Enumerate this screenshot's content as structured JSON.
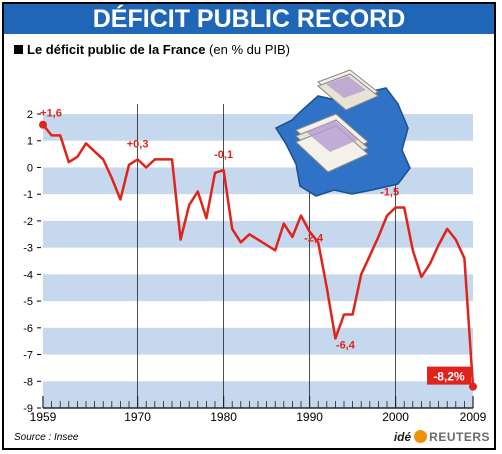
{
  "title": "DÉFICIT PUBLIC RECORD",
  "subtitle_bold": "Le déficit public de la France",
  "subtitle_rest": " (en % du PIB)",
  "source": "Source : Insee",
  "brand": {
    "ide": "idé",
    "reuters": "REUTERS"
  },
  "colors": {
    "title_bar": "#1f66b6",
    "line": "#e0231b",
    "stripe": "#c6d8ee",
    "map": "#2f72c6"
  },
  "icons": [
    "france-map-icon",
    "banknote-stack-icon"
  ],
  "chart_data": {
    "type": "line",
    "title": "",
    "xlabel": "",
    "ylabel": "",
    "xlim": [
      1959,
      2009
    ],
    "ylim": [
      -9,
      2
    ],
    "x_ticks": [
      1959,
      1970,
      1980,
      1990,
      2000,
      2009
    ],
    "y_ticks": [
      2,
      1,
      0,
      -1,
      -2,
      -3,
      -4,
      -5,
      -6,
      -7,
      -8,
      -9
    ],
    "grid": "alternating horizontal bands",
    "series": [
      {
        "x": [
          1959,
          1960,
          1961,
          1962,
          1963,
          1964,
          1965,
          1966,
          1967,
          1968,
          1969,
          1970,
          1971,
          1972,
          1973,
          1974,
          1975,
          1976,
          1977,
          1978,
          1979,
          1980,
          1981,
          1982,
          1983,
          1984,
          1985,
          1986,
          1987,
          1988,
          1989,
          1990,
          1991,
          1992,
          1993,
          1994,
          1995,
          1996,
          1997,
          1998,
          1999,
          2000,
          2001,
          2002,
          2003,
          2004,
          2005,
          2006,
          2007,
          2008,
          2009
        ],
        "y": [
          1.6,
          1.2,
          1.2,
          0.2,
          0.4,
          0.9,
          0.6,
          0.3,
          -0.4,
          -1.2,
          0.1,
          0.3,
          0.0,
          0.3,
          0.3,
          0.3,
          -2.7,
          -1.4,
          -0.9,
          -1.9,
          -0.2,
          -0.1,
          -2.3,
          -2.8,
          -2.5,
          -2.7,
          -2.9,
          -3.1,
          -2.1,
          -2.6,
          -1.8,
          -2.4,
          -2.8,
          -4.5,
          -6.4,
          -5.5,
          -5.5,
          -4.0,
          -3.3,
          -2.6,
          -1.8,
          -1.5,
          -1.5,
          -3.1,
          -4.1,
          -3.6,
          -2.9,
          -2.3,
          -2.7,
          -3.4,
          -8.2
        ]
      }
    ],
    "annotations": [
      {
        "x": 1959,
        "y": 1.6,
        "text": "+1,6"
      },
      {
        "x": 1970,
        "y": 0.3,
        "text": "+0,3"
      },
      {
        "x": 1980,
        "y": -0.1,
        "text": "-0,1"
      },
      {
        "x": 1990,
        "y": -2.4,
        "text": "-2,4"
      },
      {
        "x": 1993,
        "y": -6.4,
        "text": "-6,4"
      },
      {
        "x": 2000,
        "y": -1.5,
        "text": "-1,5"
      },
      {
        "x": 2009,
        "y": -8.2,
        "text": "-8,2%"
      }
    ]
  }
}
